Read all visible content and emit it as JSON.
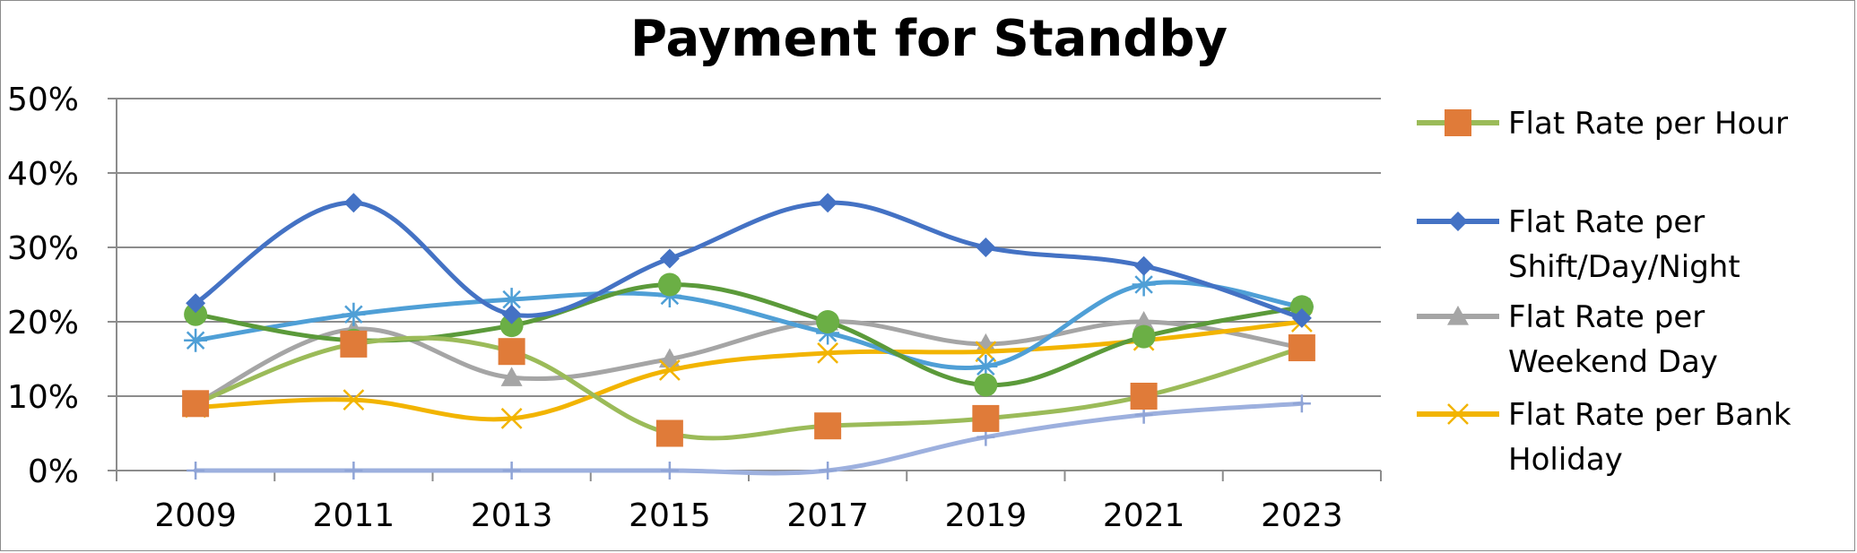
{
  "chart_data": {
    "type": "line",
    "title": "Payment for Standby",
    "xlabel": "",
    "ylabel": "",
    "x": [
      "2009",
      "2011",
      "2013",
      "2015",
      "2017",
      "2019",
      "2021",
      "2023"
    ],
    "ylim": [
      0,
      50
    ],
    "yticks": [
      "0%",
      "10%",
      "20%",
      "30%",
      "40%",
      "50%"
    ],
    "grid": true,
    "legend_position": "right",
    "series": [
      {
        "name": "Flat Rate per Hour",
        "color": "#9BBB59",
        "marker": "square",
        "marker_color": "#E07B39",
        "values": [
          9,
          17,
          16,
          5,
          6,
          7,
          10,
          16.5
        ]
      },
      {
        "name": "Flat Rate per Shift/Day/Night",
        "color": "#4472C4",
        "marker": "diamond",
        "marker_color": "#4472C4",
        "values": [
          22.5,
          36,
          21,
          28.5,
          36,
          30,
          27.5,
          20.5
        ]
      },
      {
        "name": "Flat Rate per Weekend Day",
        "color": "#A5A5A5",
        "marker": "triangle",
        "marker_color": "#A5A5A5",
        "values": [
          9,
          19,
          12.5,
          15,
          20,
          17,
          20,
          16.5
        ]
      },
      {
        "name": "Flat Rate per Bank Holiday",
        "color": "#F2B400",
        "marker": "x",
        "marker_color": "#F2B400",
        "values": [
          8.5,
          9.5,
          7,
          13.5,
          15.8,
          16,
          17.5,
          20
        ]
      },
      {
        "name": "",
        "color": "#4F9FD6",
        "marker": "star",
        "marker_color": "#4F9FD6",
        "values": [
          17.5,
          21,
          23,
          23.5,
          18.5,
          14,
          25,
          22
        ]
      },
      {
        "name": "",
        "color": "#5B9A3A",
        "marker": "circle",
        "marker_color": "#6BAF45",
        "values": [
          21,
          17.5,
          19.5,
          25,
          20,
          11.5,
          18,
          22
        ]
      },
      {
        "name": "",
        "color": "#9DB0DE",
        "marker": "plus",
        "marker_color": "#8FA4D6",
        "values": [
          0,
          0,
          0,
          0,
          0,
          4.5,
          7.5,
          9
        ]
      }
    ],
    "legend": [
      {
        "lines": [
          "Flat Rate per Hour"
        ],
        "color": "#9BBB59",
        "marker": "square",
        "marker_color": "#E07B39"
      },
      {
        "lines": [
          "Flat Rate per",
          "Shift/Day/Night"
        ],
        "color": "#4472C4",
        "marker": "diamond",
        "marker_color": "#4472C4"
      },
      {
        "lines": [
          "Flat Rate per",
          "Weekend Day"
        ],
        "color": "#A5A5A5",
        "marker": "triangle",
        "marker_color": "#A5A5A5"
      },
      {
        "lines": [
          "Flat Rate per Bank",
          "Holiday"
        ],
        "color": "#F2B400",
        "marker": "x",
        "marker_color": "#F2B400"
      }
    ]
  }
}
